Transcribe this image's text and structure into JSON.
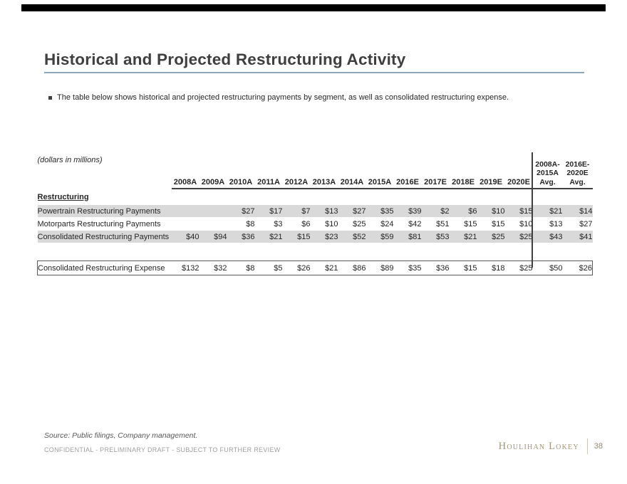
{
  "slide": {
    "title": "Historical and Projected Restructuring Activity",
    "bullet": "The table below shows historical and projected restructuring payments by segment, as well as consolidated restructuring expense.",
    "units_note": "(dollars in millions)",
    "section_label": "Restructuring"
  },
  "table": {
    "year_columns": [
      "2008A",
      "2009A",
      "2010A",
      "2011A",
      "2012A",
      "2013A",
      "2014A",
      "2015A",
      "2016E",
      "2017E",
      "2018E",
      "2019E",
      "2020E"
    ],
    "avg_columns": [
      {
        "lines": [
          "2008A-",
          "2015A",
          "Avg."
        ]
      },
      {
        "lines": [
          "2016E-",
          "2020E",
          "Avg."
        ]
      }
    ],
    "rows": [
      {
        "label": "Powertrain Restructuring Payments",
        "shaded": true,
        "values": [
          "",
          "",
          "$27",
          "$17",
          "$7",
          "$13",
          "$27",
          "$35",
          "$39",
          "$2",
          "$6",
          "$10",
          "$15"
        ],
        "avgs": [
          "$21",
          "$14"
        ]
      },
      {
        "label": "Motorparts Restructuring Payments",
        "shaded": false,
        "values": [
          "",
          "",
          "$8",
          "$3",
          "$6",
          "$10",
          "$25",
          "$24",
          "$42",
          "$51",
          "$15",
          "$15",
          "$10"
        ],
        "avgs": [
          "$13",
          "$27"
        ]
      },
      {
        "label": "Consolidated Restructuring Payments",
        "shaded": true,
        "values": [
          "$40",
          "$94",
          "$36",
          "$21",
          "$15",
          "$23",
          "$52",
          "$59",
          "$81",
          "$53",
          "$21",
          "$25",
          "$25"
        ],
        "avgs": [
          "$43",
          "$41"
        ]
      }
    ],
    "expense_row": {
      "label": "Consolidated Restructuring Expense",
      "values": [
        "$132",
        "$32",
        "$8",
        "$5",
        "$26",
        "$21",
        "$86",
        "$89",
        "$35",
        "$36",
        "$15",
        "$18",
        "$25"
      ],
      "avgs": [
        "$50",
        "$26"
      ]
    }
  },
  "footer": {
    "source": "Source: Public filings, Company management.",
    "confidential": "CONFIDENTIAL - PRELIMINARY DRAFT - SUBJECT TO FURTHER REVIEW",
    "brand": "Houlihan Lokey",
    "page": "38"
  },
  "colors": {
    "top_bar": "#000000",
    "title_text": "#3f3f3f",
    "title_rule": "#8ba7bc",
    "row_shading": "#d9d9d9",
    "table_rule": "#404040",
    "expense_box_border": "#595959",
    "brand_gold": "#a39677",
    "confidential_gray": "#a0a0a0"
  }
}
